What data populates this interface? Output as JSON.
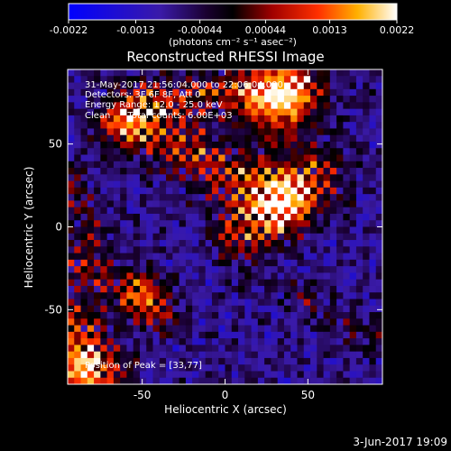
{
  "colorbar": {
    "ticks": [
      "-0.0022",
      "-0.0013",
      "-0.00044",
      "0.00044",
      "0.0013",
      "0.0022"
    ],
    "units": "(photons cm⁻² s⁻¹ asec⁻²)",
    "min": -0.0022,
    "max": 0.0022
  },
  "chart_data": {
    "type": "heatmap",
    "title": "Reconstructed RHESSI Image",
    "xlabel": "Heliocentric X (arcsec)",
    "ylabel": "Heliocentric Y (arcsec)",
    "xlim": [
      -95,
      95
    ],
    "ylim": [
      -95,
      95
    ],
    "xticks": [
      "-50",
      "0",
      "50"
    ],
    "yticks": [
      "50",
      "0",
      "-50"
    ],
    "annotations": [
      "31-May-2017 21:56:04.000 to 22:06:04.000",
      "Detectors: 3F 6F 8F, Att 0",
      "Energy Range: 12.0 - 25.0 keV",
      "Clean      Total counts: 6.00E+03"
    ],
    "peak_label": "Position of Peak = [33,77]",
    "peak": [
      33,
      77
    ],
    "colormap": "blue-purple-red-yellow-white"
  },
  "footer": {
    "date": "3-Jun-2017 19:09"
  }
}
